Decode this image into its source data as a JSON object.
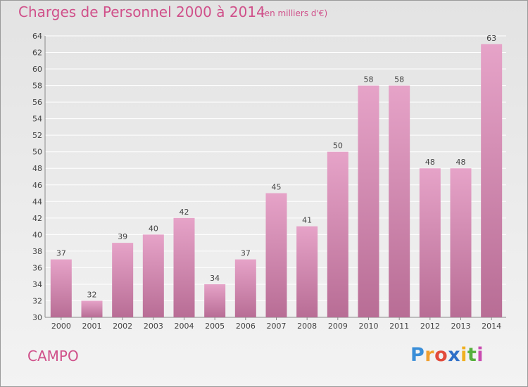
{
  "header": {
    "title": "Charges de Personnel 2000 à 2014",
    "subtitle": "(en milliers d'€)"
  },
  "footer": {
    "commune": "CAMPO",
    "logo_text": "Proxiti",
    "logo_letters": [
      {
        "ch": "P",
        "color": "#3a8ed8"
      },
      {
        "ch": "r",
        "color": "#f0a030"
      },
      {
        "ch": "o",
        "color": "#e24b3b"
      },
      {
        "ch": "x",
        "color": "#2f6fc8"
      },
      {
        "ch": "i",
        "color": "#f0b020"
      },
      {
        "ch": "t",
        "color": "#55b03c"
      },
      {
        "ch": "i",
        "color": "#c94bb0"
      }
    ]
  },
  "colors": {
    "bar_top": "#e6a3c8",
    "bar_bottom": "#b86d95",
    "title": "#d0508a",
    "grid": "#ffffff"
  },
  "chart_data": {
    "type": "bar",
    "categories": [
      "2000",
      "2001",
      "2002",
      "2003",
      "2004",
      "2005",
      "2006",
      "2007",
      "2008",
      "2009",
      "2010",
      "2011",
      "2012",
      "2013",
      "2014"
    ],
    "values": [
      37,
      32,
      39,
      40,
      42,
      34,
      37,
      45,
      41,
      50,
      58,
      58,
      48,
      48,
      63
    ],
    "ylim": [
      30,
      64
    ],
    "yticks": [
      30,
      32,
      34,
      36,
      38,
      40,
      42,
      44,
      46,
      48,
      50,
      52,
      54,
      56,
      58,
      60,
      62,
      64
    ],
    "grid": true
  }
}
